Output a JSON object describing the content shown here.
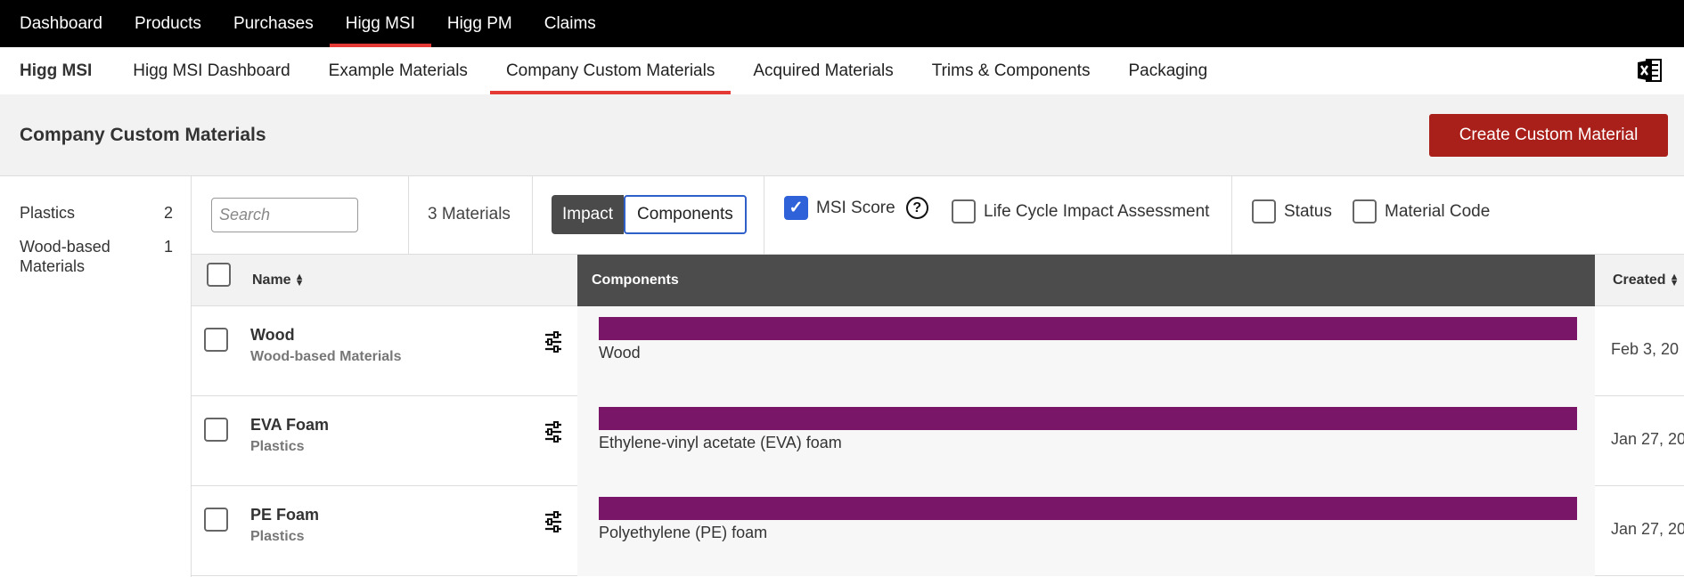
{
  "top_nav": [
    {
      "label": "Dashboard",
      "active": false
    },
    {
      "label": "Products",
      "active": false
    },
    {
      "label": "Purchases",
      "active": false
    },
    {
      "label": "Higg MSI",
      "active": true
    },
    {
      "label": "Higg PM",
      "active": false
    },
    {
      "label": "Claims",
      "active": false
    }
  ],
  "sub_nav": {
    "brand": "Higg MSI",
    "items": [
      {
        "label": "Higg MSI Dashboard",
        "active": false
      },
      {
        "label": "Example Materials",
        "active": false
      },
      {
        "label": "Company Custom Materials",
        "active": true
      },
      {
        "label": "Acquired Materials",
        "active": false
      },
      {
        "label": "Trims & Components",
        "active": false
      },
      {
        "label": "Packaging",
        "active": false
      }
    ],
    "export_icon": "excel-export-icon"
  },
  "page": {
    "title": "Company Custom Materials",
    "create_button": "Create Custom Material"
  },
  "sidebar": {
    "items": [
      {
        "label": "Plastics",
        "count": "2"
      },
      {
        "label": "Wood-based Materials",
        "count": "1"
      }
    ]
  },
  "toolbar": {
    "search_placeholder": "Search",
    "materials_count": "3 Materials",
    "view_impact": "Impact",
    "view_components": "Components",
    "msi_score": "MSI Score",
    "msi_checked": true,
    "help_icon": "?",
    "lca": "Life Cycle Impact Assessment",
    "status": "Status",
    "material_code": "Material Code"
  },
  "table": {
    "headers": {
      "name": "Name",
      "components": "Components",
      "created": "Created"
    },
    "rows": [
      {
        "name": "Wood",
        "category": "Wood-based Materials",
        "component": "Wood",
        "created": "Feb 3, 20"
      },
      {
        "name": "EVA Foam",
        "category": "Plastics",
        "component": "Ethylene-vinyl acetate (EVA) foam",
        "created": "Jan 27, 20"
      },
      {
        "name": "PE Foam",
        "category": "Plastics",
        "component": "Polyethylene (PE) foam",
        "created": "Jan 27, 20"
      }
    ]
  },
  "colors": {
    "accent_red": "#e53935",
    "create_button": "#a91f1a",
    "component_bar": "#7a1667",
    "checkbox_blue": "#2f62d8"
  }
}
